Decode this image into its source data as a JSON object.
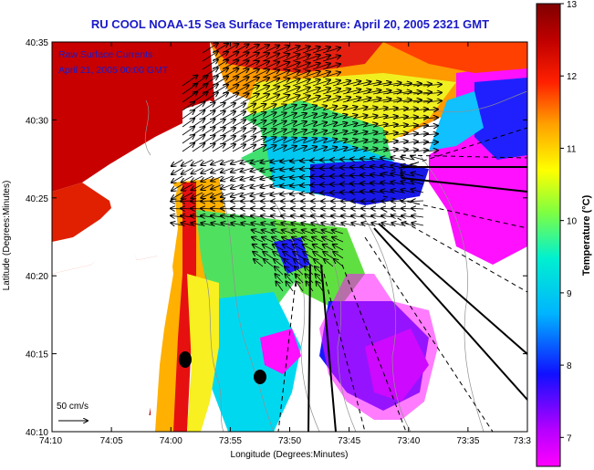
{
  "title": "RU COOL  NOAA-15  Sea Surface Temperature:  April 20, 2005 2321 GMT",
  "legend": {
    "line1": "Raw Surface Currents",
    "line2": "April 21, 2005 00:00 GMT",
    "scale_label": "50 cm/s"
  },
  "axes": {
    "xlabel": "Longitude (Degrees:Minutes)",
    "ylabel": "Latitude (Degrees:Minutes)",
    "xticks": [
      "74:10",
      "74:05",
      "74:00",
      "73:55",
      "73:50",
      "73:45",
      "73:40",
      "73:35",
      "73:3"
    ],
    "yticks": [
      "40:35",
      "40:30",
      "40:25",
      "40:20",
      "40:15",
      "40:10"
    ]
  },
  "colorbar": {
    "label": "Temperature (°C)",
    "ticks": [
      "13",
      "12",
      "11",
      "10",
      "9",
      "8",
      "7"
    ],
    "min": 6.6,
    "max": 13,
    "colors": [
      "#ff00ff",
      "#b400ff",
      "#1010ff",
      "#00b4ff",
      "#00f0d0",
      "#80ff40",
      "#ffff00",
      "#ffa000",
      "#ff2000",
      "#c00000",
      "#800000"
    ]
  }
}
